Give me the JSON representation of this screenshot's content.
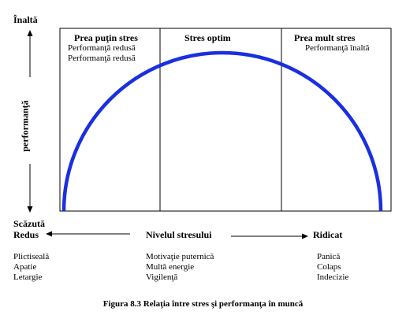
{
  "axis_left": {
    "top_label": "Înaltă",
    "middle_label": "performanţă",
    "bottom_label": "Scăzută"
  },
  "panels": [
    {
      "title": "Prea puţin stres",
      "lines": [
        "Performanţă  redusă",
        "Performanţă redusă"
      ]
    },
    {
      "title": "Stres optim",
      "lines": []
    },
    {
      "title": "Prea mult stres",
      "lines": [
        "Performanţă  înaltă"
      ]
    }
  ],
  "axis_bottom": {
    "left_label": "Redus",
    "center_label": "Nivelul stresului",
    "right_label": "Ridicat"
  },
  "columns": [
    {
      "items": [
        "Plictiseală",
        "Apatie",
        "Letargie"
      ]
    },
    {
      "items": [
        "Motivaţie puternică",
        "Multă energie",
        "Vigilenţă"
      ]
    },
    {
      "items": [
        "Panică",
        "Colaps",
        "Indecizie"
      ]
    }
  ],
  "caption": "Figura 8.3 Relaţia între stres şi performanţa în muncă",
  "colors": {
    "curve": "#1a2fe0",
    "lines": "#000000"
  }
}
